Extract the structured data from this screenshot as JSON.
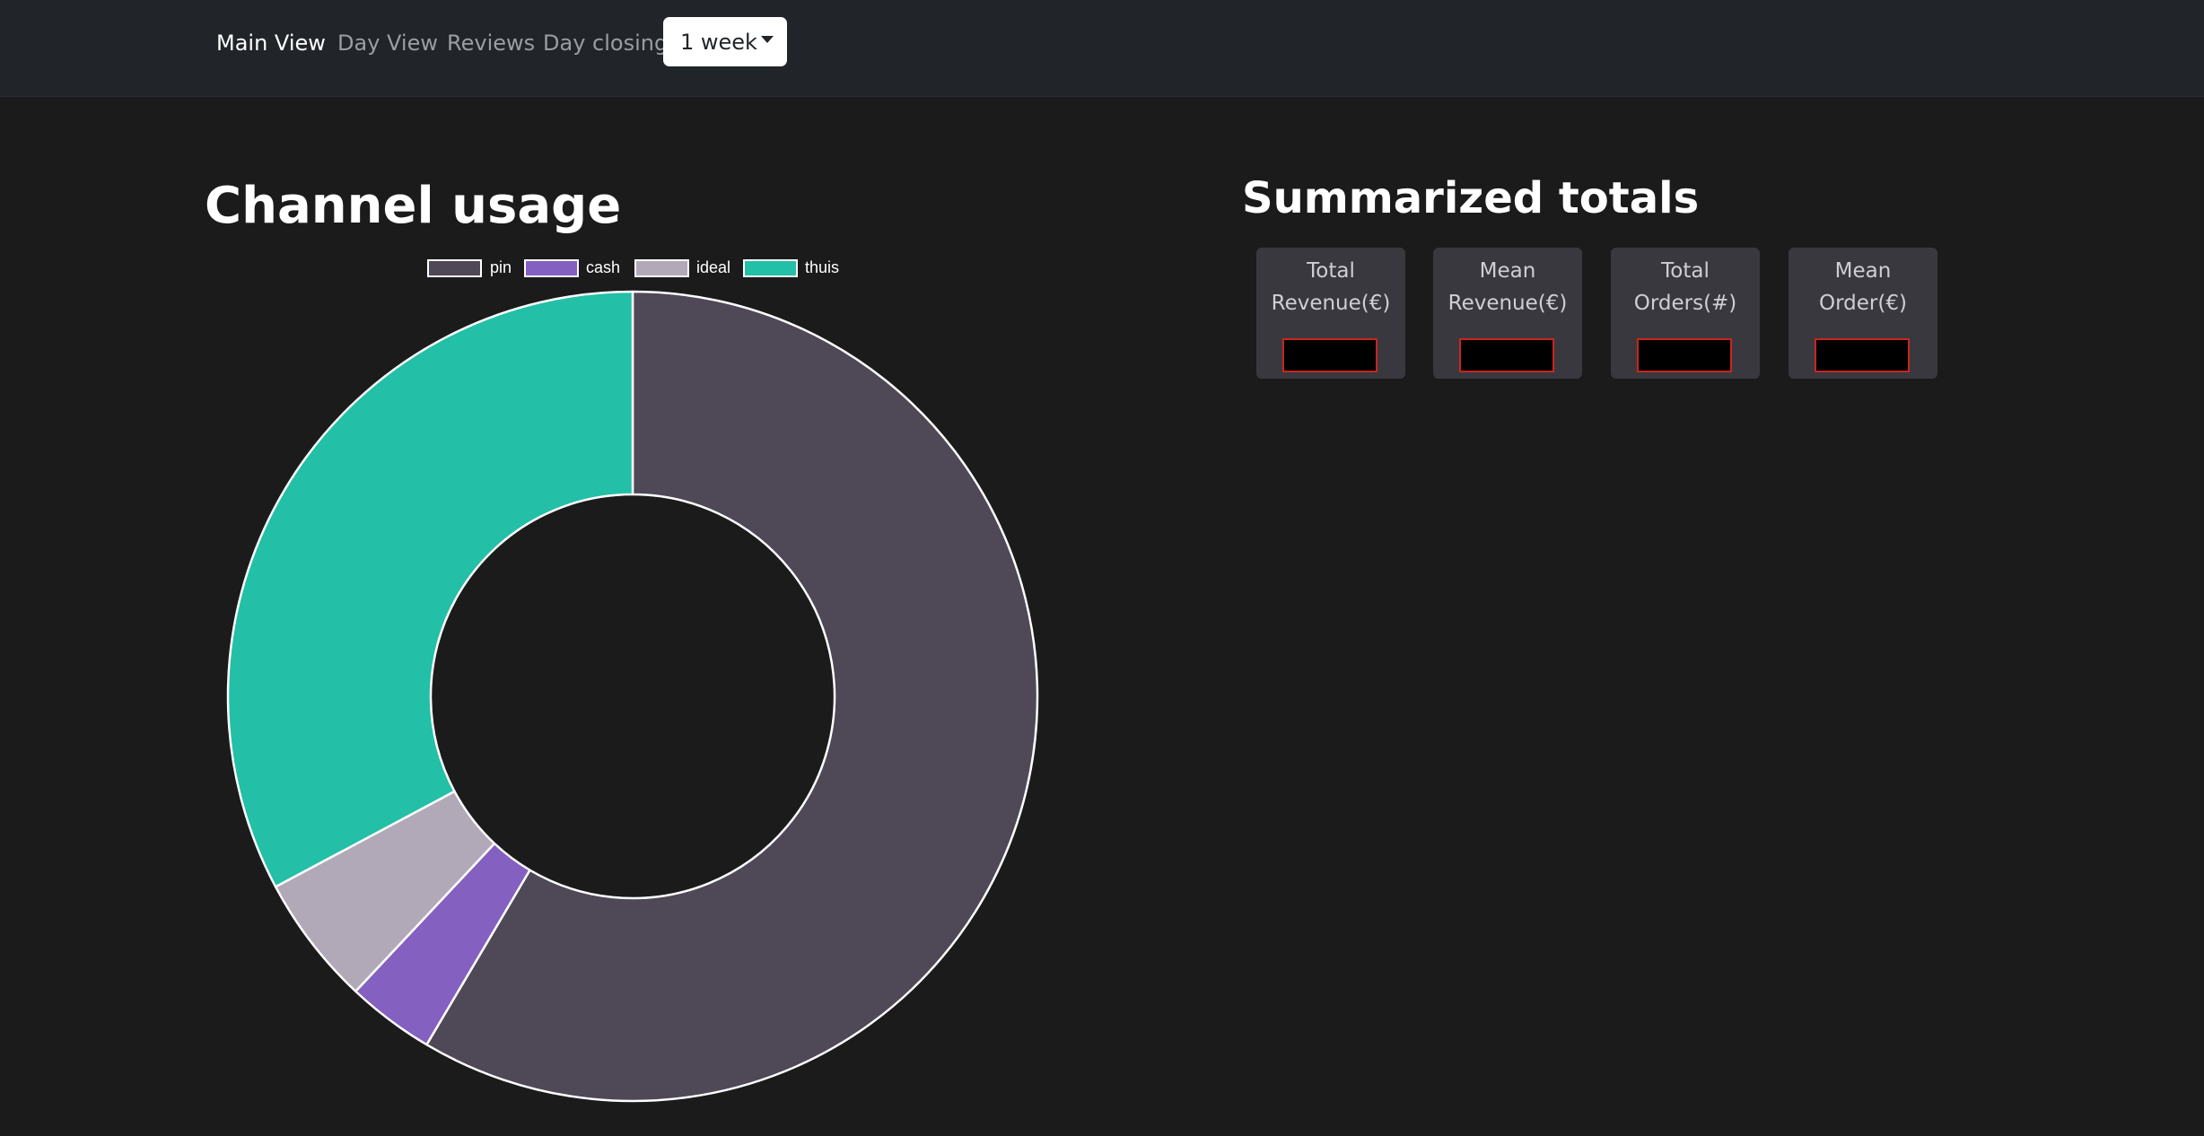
{
  "nav": {
    "links": [
      {
        "label": "Main View",
        "active": true
      },
      {
        "label": "Day View",
        "active": false
      },
      {
        "label": "Reviews",
        "active": false
      },
      {
        "label": "Day closing",
        "active": false
      }
    ],
    "period_select": {
      "selected": "1 week"
    }
  },
  "channel_usage": {
    "title": "Channel usage",
    "legend": [
      {
        "label": "pin",
        "color": "#4e4857"
      },
      {
        "label": "cash",
        "color": "#8460c0"
      },
      {
        "label": "ideal",
        "color": "#b2a9b8"
      },
      {
        "label": "thuis",
        "color": "#23bfa6"
      }
    ]
  },
  "chart_data": {
    "type": "pie",
    "variant": "doughnut",
    "categories": [
      "pin",
      "cash",
      "ideal",
      "thuis"
    ],
    "values": [
      58.5,
      3.5,
      5.2,
      32.8
    ],
    "colors": [
      "#4e4857",
      "#8460c0",
      "#b2a9b8",
      "#23bfa6"
    ],
    "legend_position": "top",
    "title": ""
  },
  "summary": {
    "title": "Summarized totals",
    "cards": [
      {
        "line1": "Total",
        "line2": "Revenue(€)",
        "value": ""
      },
      {
        "line1": "Mean",
        "line2": "Revenue(€)",
        "value": ""
      },
      {
        "line1": "Total",
        "line2": "Orders(#)",
        "value": ""
      },
      {
        "line1": "Mean",
        "line2": "Order(€)",
        "value": ""
      }
    ]
  }
}
